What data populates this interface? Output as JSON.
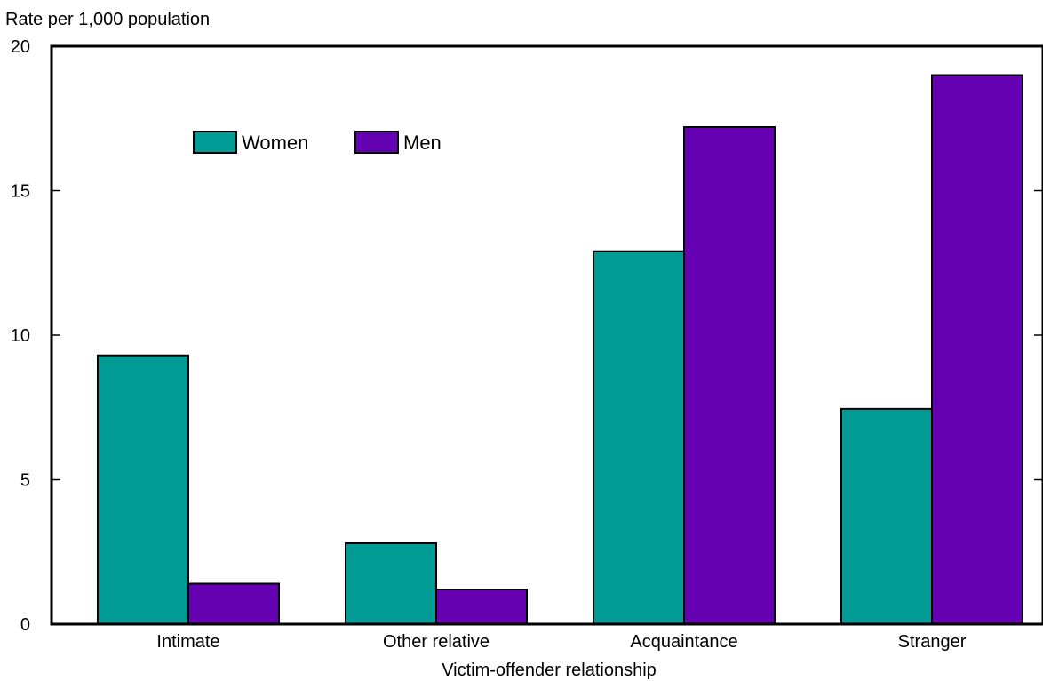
{
  "chart_data": {
    "type": "bar",
    "ylabel": "Rate per 1,000 population",
    "xlabel": "Victim-offender relationship",
    "categories": [
      "Intimate",
      "Other relative",
      "Acquaintance",
      "Stranger"
    ],
    "series": [
      {
        "name": "Women",
        "color": "#009b94",
        "values": [
          9.3,
          2.8,
          12.9,
          7.45
        ]
      },
      {
        "name": "Men",
        "color": "#6600b3",
        "values": [
          1.4,
          1.2,
          17.2,
          19.0
        ]
      }
    ],
    "ylim": [
      0,
      20
    ],
    "yticks": [
      0,
      5,
      10,
      15,
      20
    ],
    "grid": false,
    "legend_position": "top-left"
  }
}
